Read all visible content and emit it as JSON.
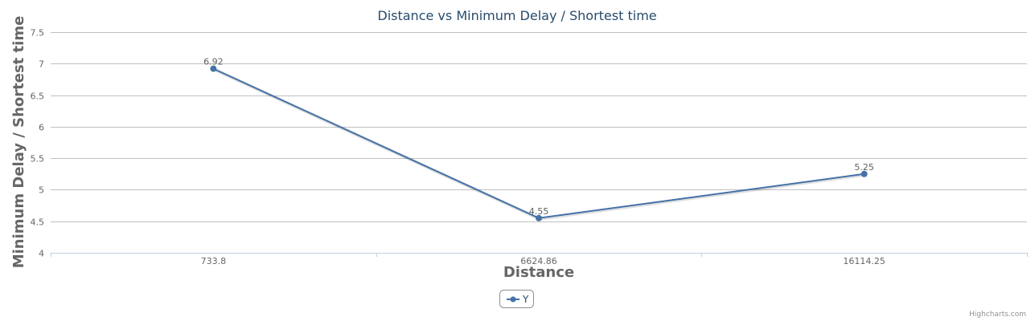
{
  "chart_data": {
    "type": "line",
    "title": "Distance vs Minimum Delay / Shortest time",
    "xlabel": "Distance",
    "ylabel": "Minimum Delay / Shortest time",
    "categories": [
      "733.8",
      "6624.86",
      "16114.25"
    ],
    "series": [
      {
        "name": "Y",
        "values": [
          6.92,
          4.55,
          5.25
        ],
        "data_labels": [
          "6.92",
          "4.55",
          "5.25"
        ]
      }
    ],
    "ylim": [
      4,
      7.5
    ],
    "y_ticks": [
      "4",
      "4.5",
      "5",
      "5.5",
      "6",
      "6.5",
      "7",
      "7.5"
    ],
    "grid": true,
    "legend_position": "bottom-center",
    "series_color": "#4572a7",
    "grid_color": "#c0c0c0",
    "credits": "Highcharts.com"
  }
}
